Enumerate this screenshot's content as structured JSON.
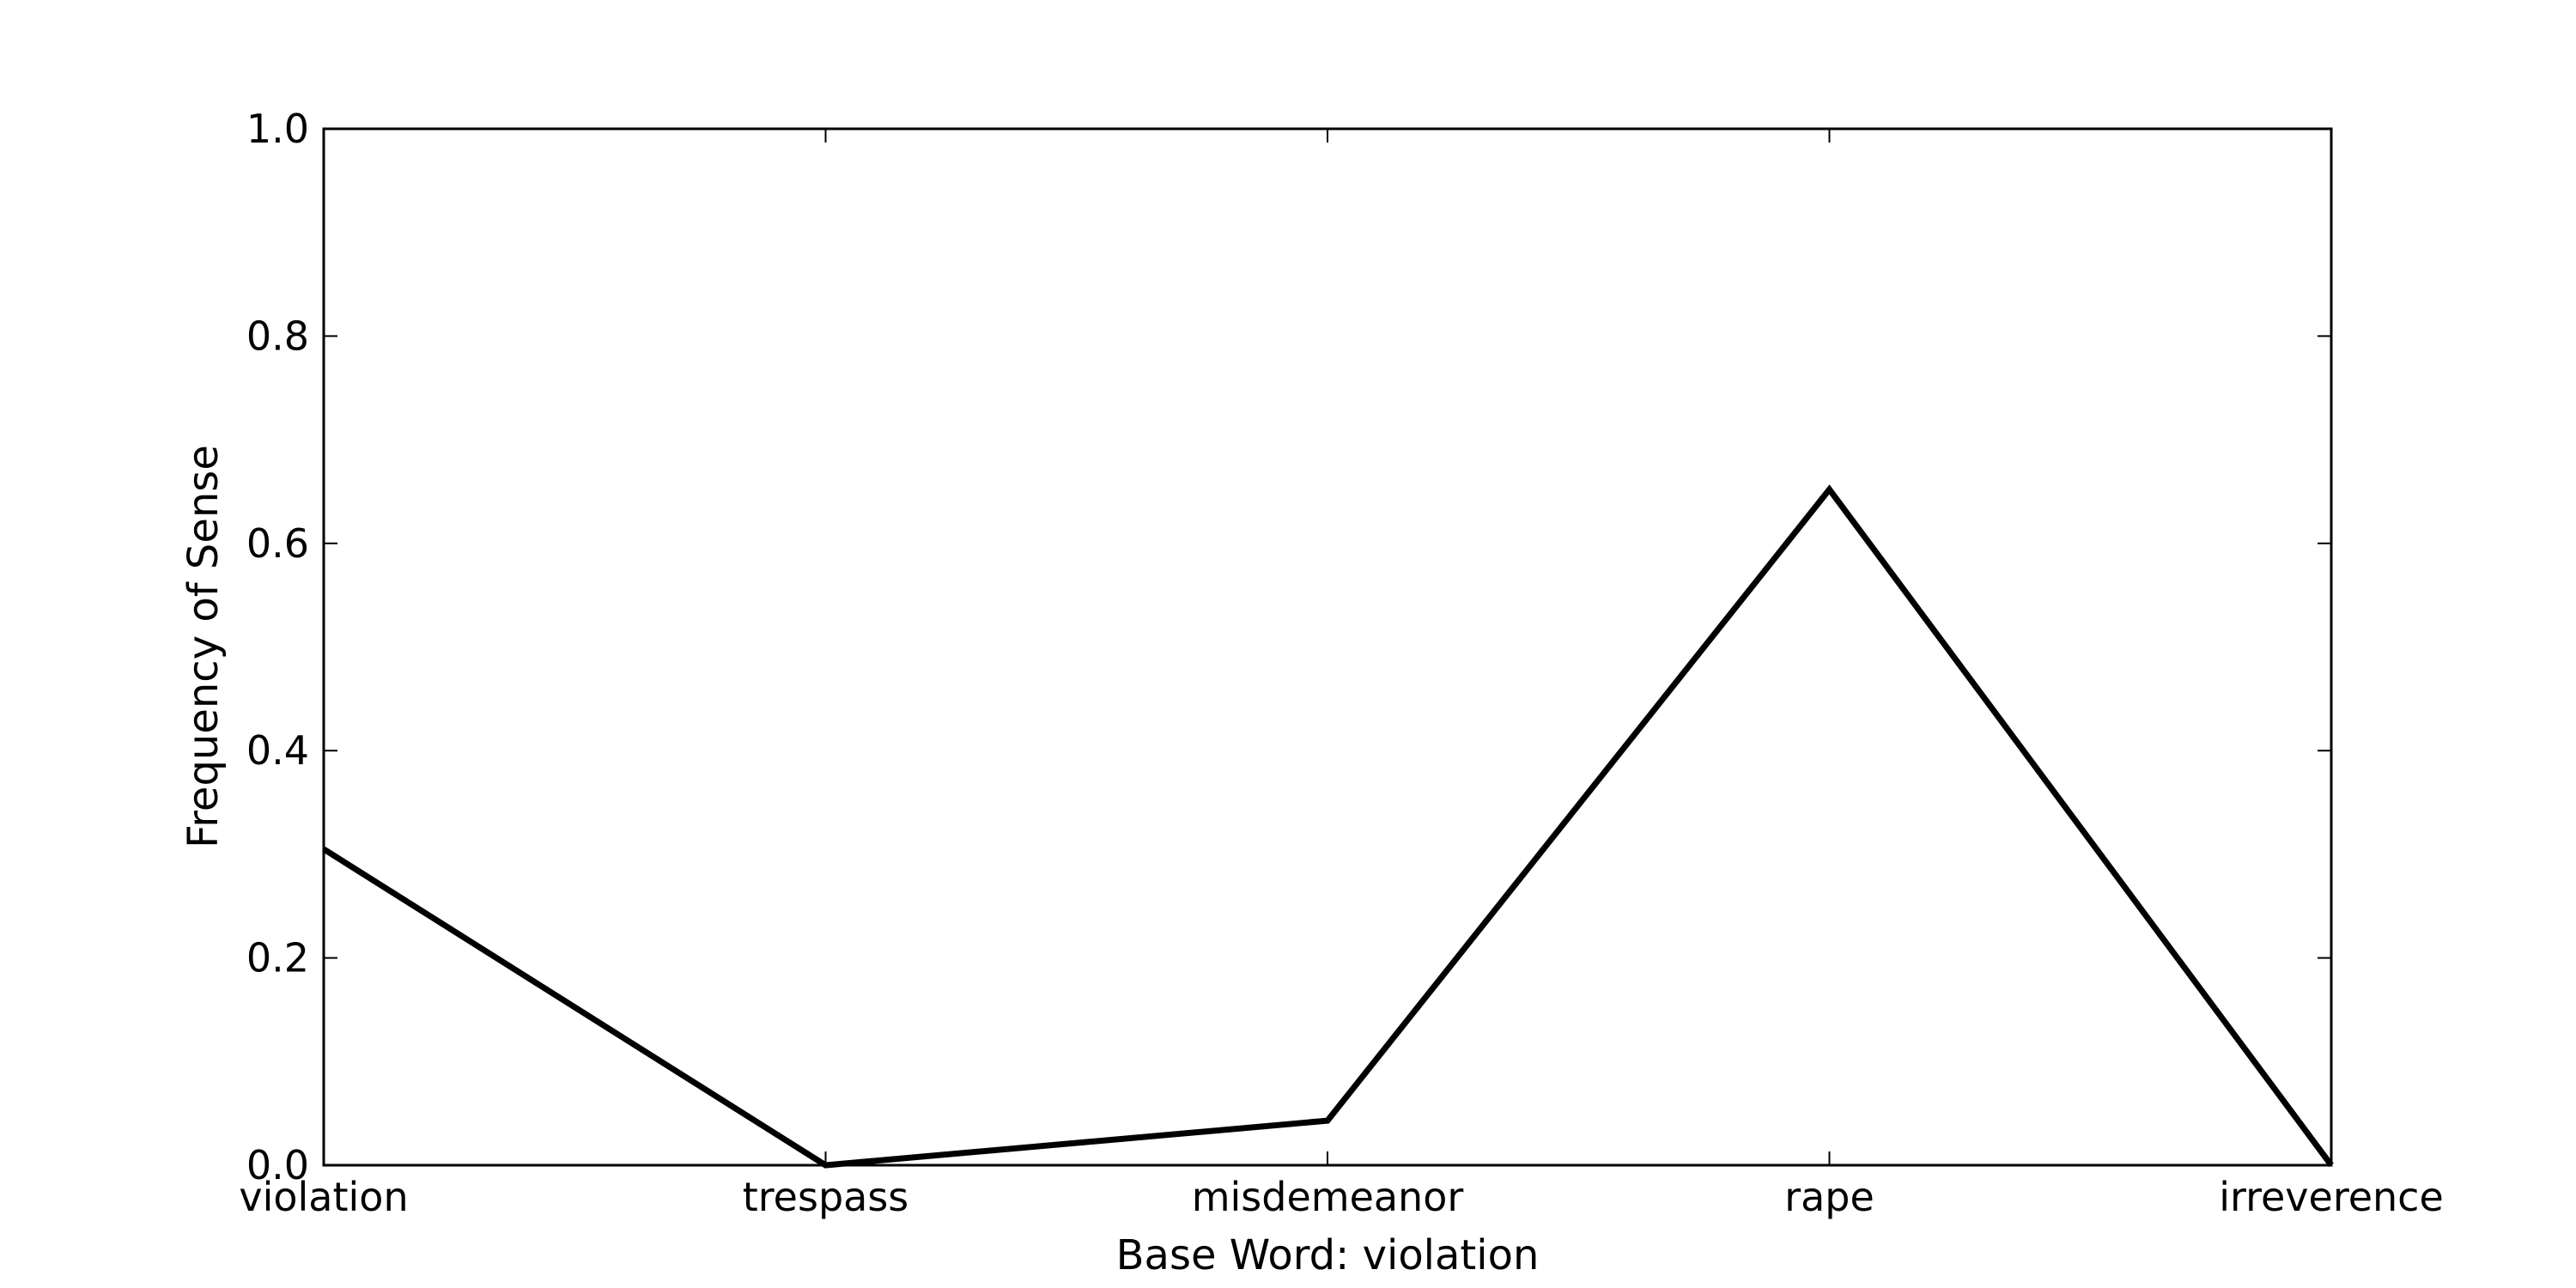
{
  "chart_data": {
    "type": "line",
    "title": "",
    "xlabel": "Base Word: violation",
    "ylabel": "Frequency of Sense",
    "categories": [
      "violation",
      "trespass",
      "misdemeanor",
      "rape",
      "irreverence"
    ],
    "series": [
      {
        "values": [
          0.305,
          0.0,
          0.043,
          0.652,
          0.0
        ]
      }
    ],
    "ylim": [
      0.0,
      1.0
    ],
    "yticks": [
      "0.0",
      "0.2",
      "0.4",
      "0.6",
      "0.8",
      "1.0"
    ],
    "grid": false,
    "line_color": "#000000"
  }
}
